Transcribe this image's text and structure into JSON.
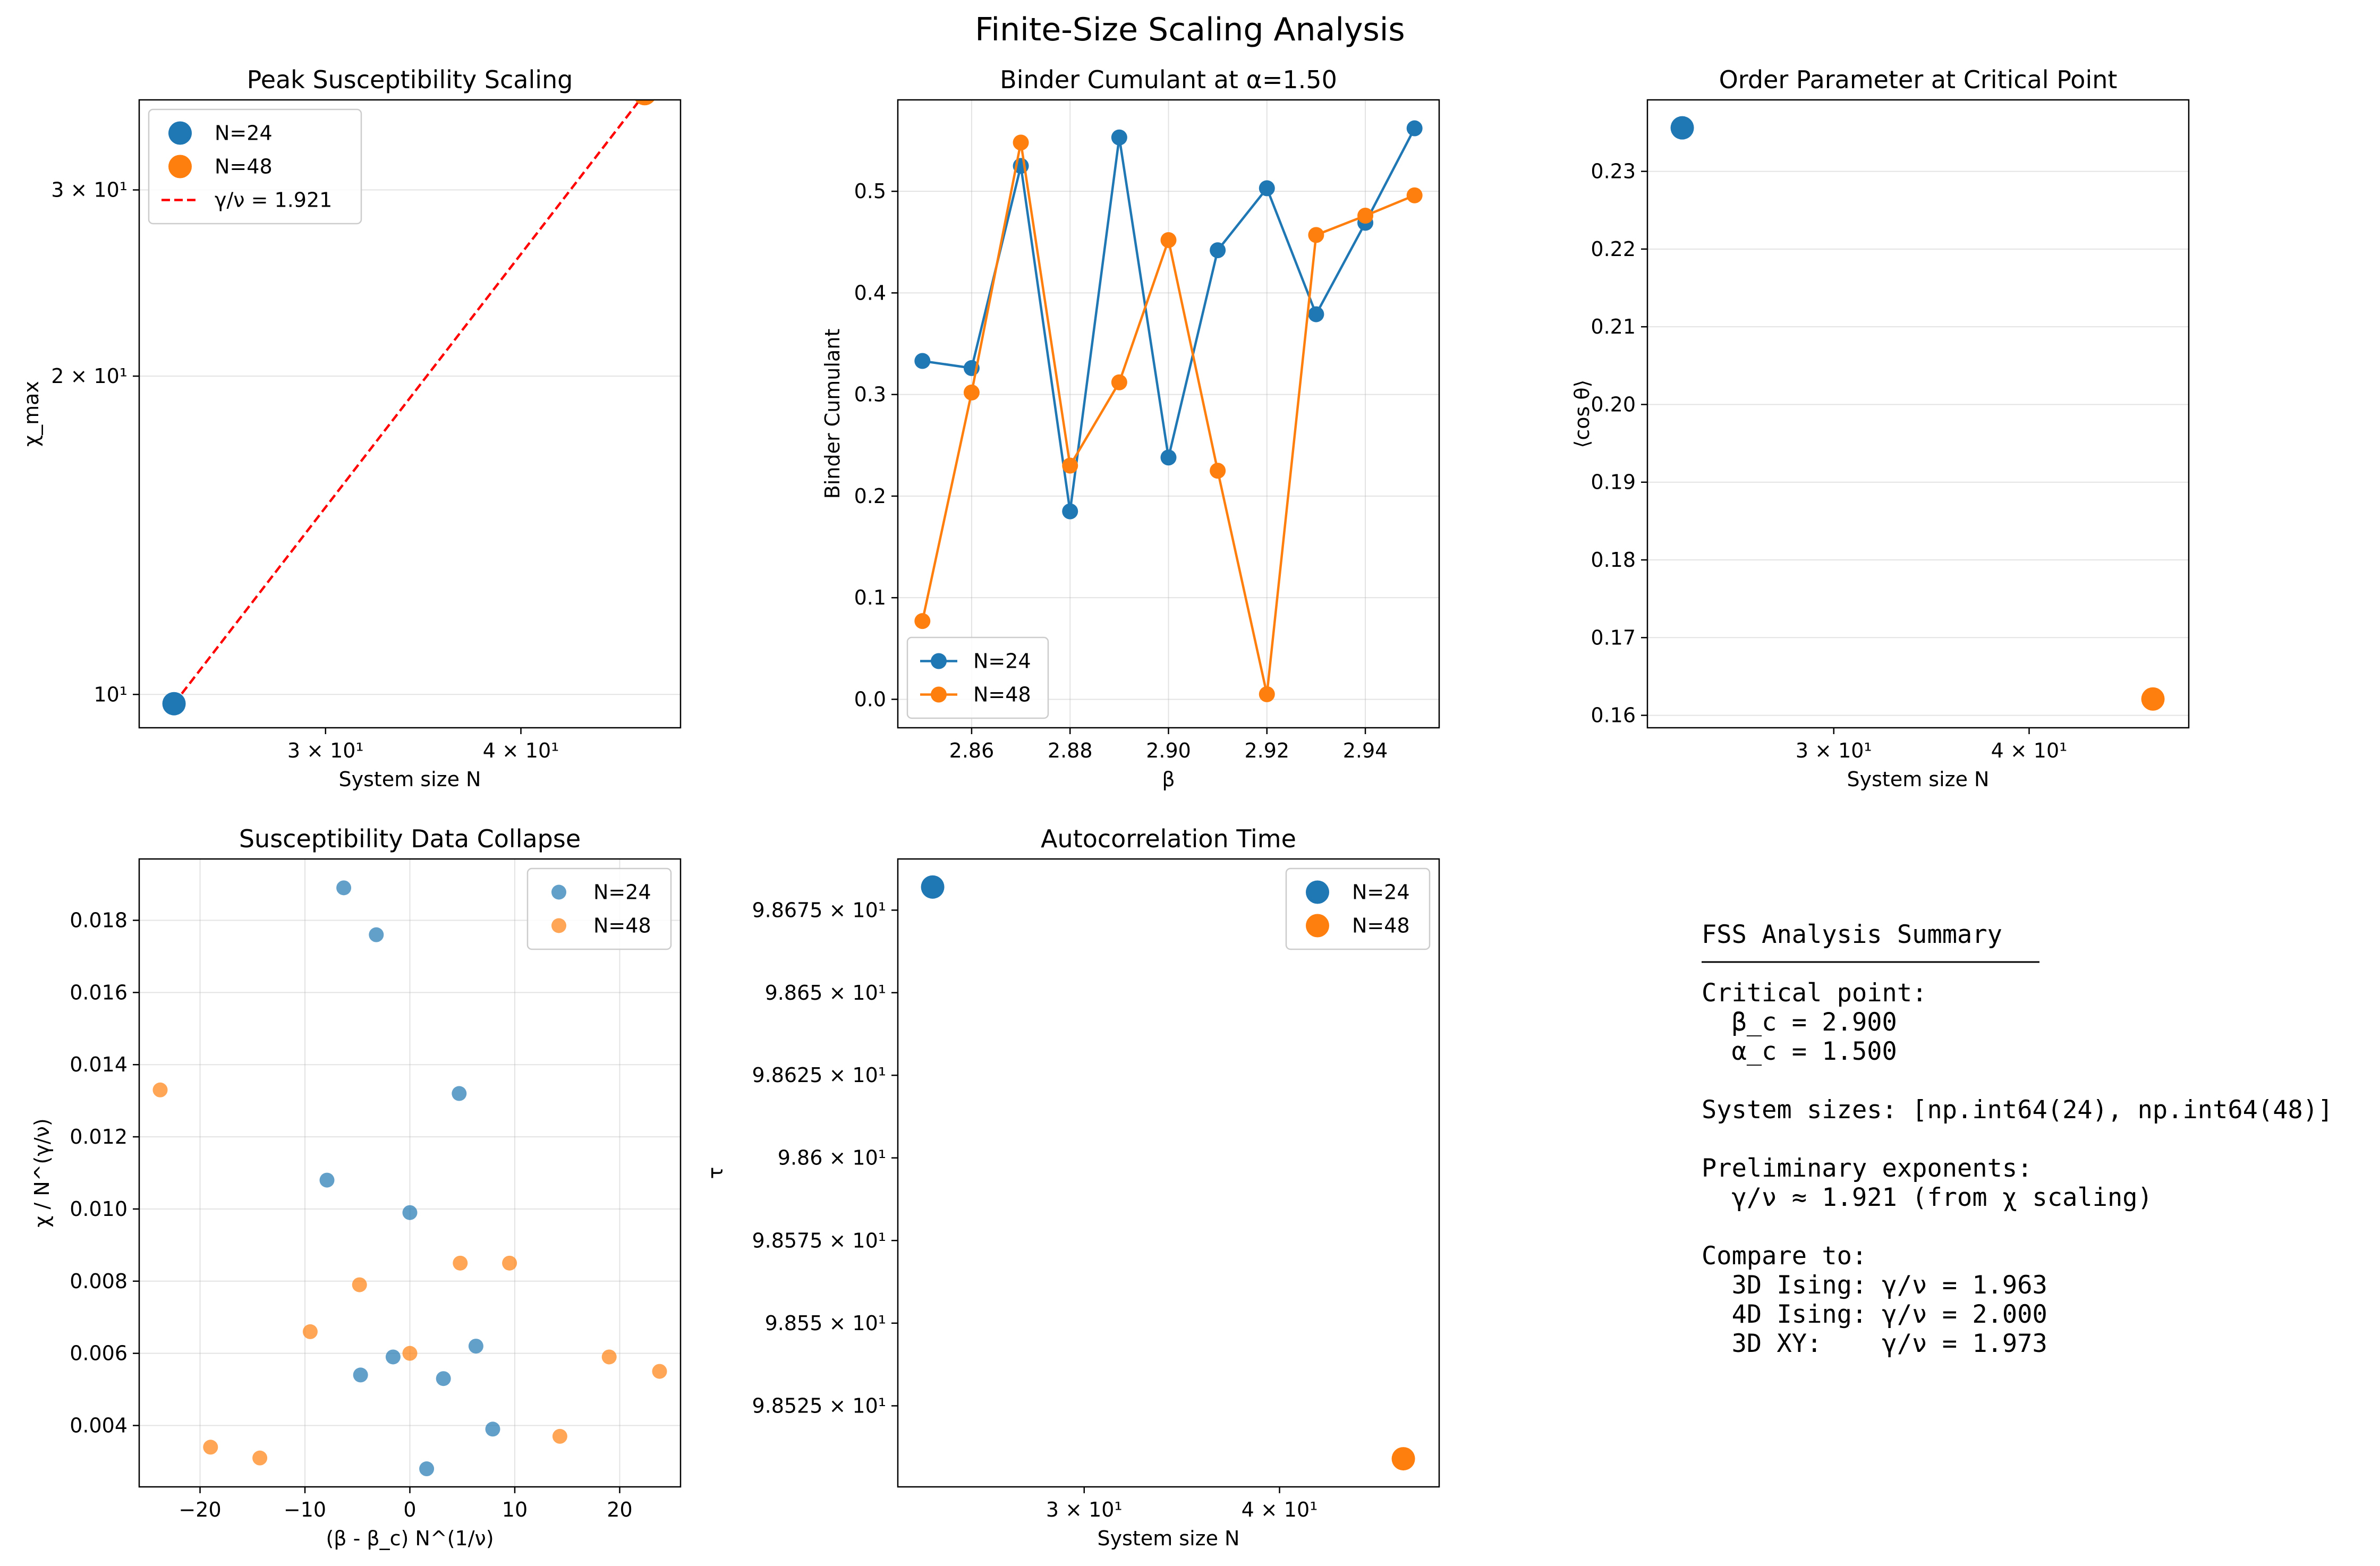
{
  "figure": {
    "title": "Finite-Size Scaling Analysis"
  },
  "colors": {
    "n24": "#1f77b4",
    "n48": "#ff7f0e",
    "fit": "#ff0000",
    "grid": "#b0b0b0"
  },
  "chart_data": [
    {
      "id": "peak",
      "type": "scatter",
      "title": "Peak Susceptibility Scaling",
      "xlabel": "System size N",
      "ylabel": "χ_max",
      "xscale": "log",
      "yscale": "log",
      "xlim": [
        22.8,
        50.6
      ],
      "ylim": [
        9.3,
        36.5
      ],
      "grid": "y",
      "legend": "top-left",
      "xticks": [
        {
          "value": 30,
          "label": "3 × 10¹"
        },
        {
          "value": 40,
          "label": "4 × 10¹"
        }
      ],
      "yticks": [
        {
          "value": 10,
          "label": "10¹"
        },
        {
          "value": 20,
          "label": "2 × 10¹"
        },
        {
          "value": 30,
          "label": "3 × 10¹"
        }
      ],
      "series": [
        {
          "name": "N=24",
          "color": "n24",
          "x": [
            24
          ],
          "y": [
            9.8
          ]
        },
        {
          "name": "N=48",
          "color": "n48",
          "x": [
            48
          ],
          "y": [
            37.0
          ]
        }
      ],
      "fit": {
        "name": "γ/ν = 1.921",
        "x": [
          24,
          48
        ],
        "y": [
          9.8,
          37.0
        ]
      }
    },
    {
      "id": "binder",
      "type": "line",
      "title": "Binder Cumulant at α=1.50",
      "xlabel": "β",
      "ylabel": "Binder Cumulant",
      "xlim": [
        2.845,
        2.955
      ],
      "ylim": [
        -0.028,
        0.59
      ],
      "grid": "both",
      "legend": "bottom-left",
      "xticks": [
        {
          "value": 2.86,
          "label": "2.86"
        },
        {
          "value": 2.88,
          "label": "2.88"
        },
        {
          "value": 2.9,
          "label": "2.90"
        },
        {
          "value": 2.92,
          "label": "2.92"
        },
        {
          "value": 2.94,
          "label": "2.94"
        }
      ],
      "yticks": [
        {
          "value": 0.0,
          "label": "0.0"
        },
        {
          "value": 0.1,
          "label": "0.1"
        },
        {
          "value": 0.2,
          "label": "0.2"
        },
        {
          "value": 0.3,
          "label": "0.3"
        },
        {
          "value": 0.4,
          "label": "0.4"
        },
        {
          "value": 0.5,
          "label": "0.5"
        }
      ],
      "x": [
        2.85,
        2.86,
        2.87,
        2.88,
        2.89,
        2.9,
        2.91,
        2.92,
        2.93,
        2.94,
        2.95
      ],
      "series": [
        {
          "name": "N=24",
          "color": "n24",
          "values": [
            0.333,
            0.326,
            0.525,
            0.185,
            0.553,
            0.238,
            0.442,
            0.503,
            0.379,
            0.469,
            0.562
          ]
        },
        {
          "name": "N=48",
          "color": "n48",
          "values": [
            0.077,
            0.302,
            0.548,
            0.23,
            0.312,
            0.452,
            0.225,
            0.005,
            0.457,
            0.476,
            0.496
          ]
        }
      ]
    },
    {
      "id": "order",
      "type": "scatter",
      "title": "Order Parameter at Critical Point",
      "xlabel": "System size N",
      "ylabel": "⟨cos θ⟩",
      "xscale": "log",
      "xlim": [
        22.8,
        50.6
      ],
      "ylim": [
        0.1584,
        0.2392
      ],
      "grid": "y",
      "xticks": [
        {
          "value": 30,
          "label": "3 × 10¹"
        },
        {
          "value": 40,
          "label": "4 × 10¹"
        }
      ],
      "yticks": [
        {
          "value": 0.16,
          "label": "0.16"
        },
        {
          "value": 0.17,
          "label": "0.17"
        },
        {
          "value": 0.18,
          "label": "0.18"
        },
        {
          "value": 0.19,
          "label": "0.19"
        },
        {
          "value": 0.2,
          "label": "0.20"
        },
        {
          "value": 0.21,
          "label": "0.21"
        },
        {
          "value": 0.22,
          "label": "0.22"
        },
        {
          "value": 0.23,
          "label": "0.23"
        }
      ],
      "series": [
        {
          "name": "N=24",
          "color": "n24",
          "x": [
            24
          ],
          "y": [
            0.2356
          ]
        },
        {
          "name": "N=48",
          "color": "n48",
          "x": [
            48
          ],
          "y": [
            0.1621
          ]
        }
      ]
    },
    {
      "id": "collapse",
      "type": "scatter",
      "title": "Susceptibility Data Collapse",
      "xlabel": "(β - β_c) N^(1/ν)",
      "ylabel": "χ / N^(γ/ν)",
      "xlim": [
        -25.8,
        25.8
      ],
      "ylim": [
        0.0023,
        0.0197
      ],
      "grid": "both",
      "legend": "top-right",
      "xticks": [
        {
          "value": -20,
          "label": "−20"
        },
        {
          "value": -10,
          "label": "−10"
        },
        {
          "value": 0,
          "label": "0"
        },
        {
          "value": 10,
          "label": "10"
        },
        {
          "value": 20,
          "label": "20"
        }
      ],
      "yticks": [
        {
          "value": 0.004,
          "label": "0.004"
        },
        {
          "value": 0.006,
          "label": "0.006"
        },
        {
          "value": 0.008,
          "label": "0.008"
        },
        {
          "value": 0.01,
          "label": "0.010"
        },
        {
          "value": 0.012,
          "label": "0.012"
        },
        {
          "value": 0.014,
          "label": "0.014"
        },
        {
          "value": 0.016,
          "label": "0.016"
        },
        {
          "value": 0.018,
          "label": "0.018"
        }
      ],
      "series": [
        {
          "name": "N=24",
          "color": "n24",
          "x": [
            -6.3,
            -3.2,
            4.7,
            -7.9,
            0.0,
            -4.7,
            -1.6,
            3.2,
            6.3,
            7.9,
            1.6
          ],
          "y": [
            0.0189,
            0.0176,
            0.0132,
            0.0108,
            0.0099,
            0.0054,
            0.0059,
            0.0053,
            0.0062,
            0.0039,
            0.0028
          ]
        },
        {
          "name": "N=48",
          "color": "n48",
          "x": [
            -23.8,
            -4.8,
            -9.5,
            0.0,
            4.8,
            9.5,
            19.0,
            23.8,
            -19.0,
            -14.3,
            14.3
          ],
          "y": [
            0.0133,
            0.0079,
            0.0066,
            0.006,
            0.0085,
            0.0085,
            0.0059,
            0.0055,
            0.0034,
            0.0031,
            0.0037
          ]
        }
      ]
    },
    {
      "id": "autocorr",
      "type": "scatter",
      "title": "Autocorrelation Time",
      "xlabel": "System size N",
      "ylabel": "τ",
      "xscale": "log",
      "yscale": "log",
      "xlim": [
        22.8,
        50.6
      ],
      "ylim": [
        98.5005,
        98.6905
      ],
      "grid": "none",
      "legend": "top-right",
      "xticks": [
        {
          "value": 30,
          "label": "3 × 10¹"
        },
        {
          "value": 40,
          "label": "4 × 10¹"
        }
      ],
      "yticks": [
        {
          "value": 98.525,
          "label": "9.8525 × 10¹"
        },
        {
          "value": 98.55,
          "label": "9.855 × 10¹"
        },
        {
          "value": 98.575,
          "label": "9.8575 × 10¹"
        },
        {
          "value": 98.6,
          "label": "9.86 × 10¹"
        },
        {
          "value": 98.625,
          "label": "9.8625 × 10¹"
        },
        {
          "value": 98.65,
          "label": "9.865 × 10¹"
        },
        {
          "value": 98.675,
          "label": "9.8675 × 10¹"
        }
      ],
      "series": [
        {
          "name": "N=24",
          "color": "n24",
          "x": [
            24
          ],
          "y": [
            98.682
          ]
        },
        {
          "name": "N=48",
          "color": "n48",
          "x": [
            48
          ],
          "y": [
            98.509
          ]
        }
      ]
    }
  ],
  "summary": {
    "heading": "FSS Analysis Summary",
    "lines": [
      "Critical point:",
      "  β_c = 2.900",
      "  α_c = 1.500",
      "",
      "System sizes: [np.int64(24), np.int64(48)]",
      "",
      "Preliminary exponents:",
      "  γ/ν ≈ 1.921 (from χ scaling)",
      "",
      "Compare to:",
      "  3D Ising: γ/ν = 1.963",
      "  4D Ising: γ/ν = 2.000",
      "  3D XY:    γ/ν = 1.973"
    ]
  }
}
